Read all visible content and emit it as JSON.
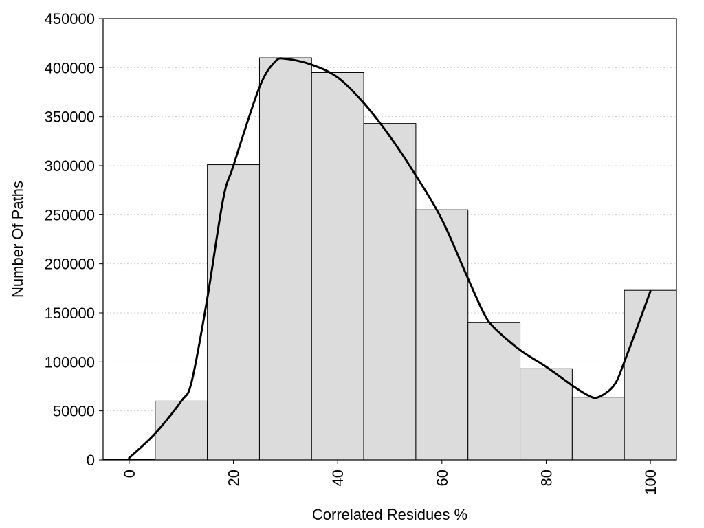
{
  "chart_data": {
    "type": "bar",
    "bin_width": 10,
    "categories": [
      0,
      10,
      20,
      30,
      40,
      50,
      60,
      70,
      80,
      90,
      100
    ],
    "values": [
      700,
      60000,
      301000,
      410000,
      395000,
      343000,
      255000,
      140000,
      93000,
      64000,
      173000
    ],
    "trend_line": {
      "x": [
        0,
        5,
        10,
        12,
        15,
        18,
        20,
        25,
        28,
        30,
        35,
        40,
        45,
        50,
        55,
        60,
        65,
        68,
        70,
        75,
        80,
        85,
        88,
        90,
        93,
        95,
        100
      ],
      "y": [
        2000,
        27000,
        60000,
        80000,
        165000,
        265000,
        300000,
        380000,
        406000,
        409000,
        403000,
        390000,
        364000,
        330000,
        290000,
        245000,
        185000,
        150000,
        135000,
        112000,
        95000,
        76000,
        66000,
        64000,
        76000,
        100000,
        172000
      ]
    },
    "title": "",
    "xlabel": "Correlated Residues %",
    "ylabel": "Number Of Paths",
    "xlim": [
      -5,
      105
    ],
    "ylim": [
      0,
      450000
    ],
    "x_ticks": [
      "0",
      "20",
      "40",
      "60",
      "80",
      "100"
    ],
    "y_ticks": [
      "0",
      "50000",
      "100000",
      "150000",
      "200000",
      "250000",
      "300000",
      "350000",
      "400000",
      "450000"
    ],
    "grid": "horizontal dotted",
    "colors": {
      "bar_fill": "#dcdcdc",
      "bar_edge": "#000000",
      "line": "#000000"
    }
  }
}
